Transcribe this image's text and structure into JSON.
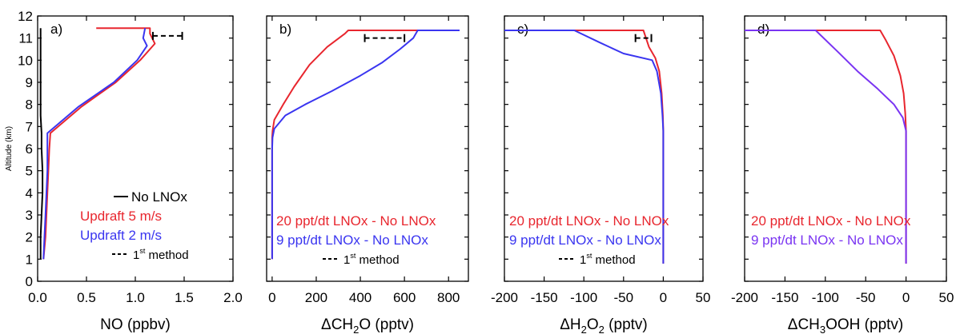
{
  "colors": {
    "black": "#000000",
    "red": "#e8262e",
    "blue": "#3a35f0",
    "violet": "#7a34f2"
  },
  "shared_axis": {
    "ylabel": "Altitude (km)",
    "yticks": [
      "0",
      "1",
      "2",
      "3",
      "4",
      "5",
      "6",
      "7",
      "8",
      "9",
      "10",
      "11",
      "12"
    ],
    "ylim": [
      0,
      12
    ]
  },
  "chart_data": [
    {
      "type": "line",
      "panel_label": "a)",
      "xlabel": "NO (ppbv)",
      "xlim": [
        0,
        2.0
      ],
      "xticks": [
        "0.0",
        "0.5",
        "1.0",
        "1.5",
        "2.0"
      ],
      "ylim": [
        0,
        12
      ],
      "series": [
        {
          "name": "No LNOx",
          "color": "#000000",
          "x": [
            0.03,
            0.03,
            0.04,
            0.05,
            0.05,
            0.04,
            0.04,
            0.03,
            0.03,
            0.03,
            0.03,
            0.03
          ],
          "y": [
            1,
            2,
            3,
            4,
            5,
            6,
            6.7,
            7.5,
            8.5,
            9.5,
            10.5,
            11.45
          ]
        },
        {
          "name": "Updraft 5 m/s",
          "color": "#e8262e",
          "x": [
            0.06,
            0.08,
            0.09,
            0.1,
            0.11,
            0.12,
            0.13,
            0.45,
            0.8,
            1.05,
            1.2,
            1.15,
            1.15,
            0.6
          ],
          "y": [
            1,
            2,
            3,
            4,
            5,
            6,
            6.7,
            7.9,
            9.0,
            10.0,
            10.75,
            11.2,
            11.45,
            11.45
          ]
        },
        {
          "name": "Updraft 2 m/s",
          "color": "#3a35f0",
          "x": [
            0.06,
            0.07,
            0.08,
            0.09,
            0.1,
            0.1,
            0.1,
            0.42,
            0.78,
            1.02,
            1.12,
            1.08,
            1.1
          ],
          "y": [
            1,
            2,
            3,
            4,
            5,
            6,
            6.7,
            7.9,
            9.0,
            10.0,
            10.65,
            11.0,
            11.45
          ]
        }
      ],
      "method_bar": {
        "x": [
          1.18,
          1.48
        ],
        "y": 11.1
      },
      "legend": [
        {
          "text": "No LNOx",
          "color": "#000000",
          "marker": "solid"
        },
        {
          "text": "Updraft 5 m/s",
          "color": "#e8262e",
          "marker": "none"
        },
        {
          "text": "Updraft 2 m/s",
          "color": "#3a35f0",
          "marker": "none"
        },
        {
          "text": "1",
          "sup": "st",
          "tail": " method",
          "color": "#000000",
          "marker": "dashed"
        }
      ]
    },
    {
      "type": "line",
      "panel_label": "b)",
      "xlabel": "ΔCH",
      "xlabel_parts": [
        "ΔCH",
        "2",
        "O (pptv)"
      ],
      "xlim": [
        -25,
        890
      ],
      "xticks": [
        "0",
        "200",
        "400",
        "600",
        "800"
      ],
      "ylim": [
        0,
        12
      ],
      "series": [
        {
          "name": "20 ppt/dt LNOx - No LNOx",
          "color": "#e8262e",
          "x": [
            0,
            0,
            0,
            0,
            0,
            2,
            10,
            50,
            100,
            170,
            250,
            330,
            345,
            850
          ],
          "y": [
            1,
            3,
            5,
            6,
            6.5,
            6.8,
            7.3,
            8.0,
            8.8,
            9.8,
            10.6,
            11.2,
            11.35,
            11.35
          ]
        },
        {
          "name": "9 ppt/dt LNOx - No LNOx",
          "color": "#3a35f0",
          "x": [
            0,
            0,
            0,
            0,
            2,
            10,
            60,
            150,
            270,
            400,
            500,
            580,
            640,
            660,
            850
          ],
          "y": [
            1,
            3,
            5,
            6,
            6.5,
            6.9,
            7.5,
            8.0,
            8.6,
            9.3,
            9.9,
            10.5,
            11.0,
            11.35,
            11.35
          ]
        }
      ],
      "method_bar": {
        "x": [
          420,
          600
        ],
        "y": 11.0
      },
      "legend": [
        {
          "text": "20 ppt/dt LNOx - No LNOx",
          "color": "#e8262e",
          "marker": "none"
        },
        {
          "text": "9 ppt/dt LNOx - No LNOx",
          "color": "#3a35f0",
          "marker": "none"
        },
        {
          "text": "1",
          "sup": "st",
          "tail": " method",
          "color": "#000000",
          "marker": "dashed"
        }
      ]
    },
    {
      "type": "line",
      "panel_label": "c)",
      "xlabel": "ΔH",
      "xlabel_parts": [
        "ΔH",
        "2",
        "O",
        "2",
        " (pptv)"
      ],
      "xlim": [
        -200,
        50
      ],
      "xticks": [
        "-200",
        "-150",
        "-100",
        "-50",
        "0",
        "50"
      ],
      "ylim": [
        0,
        12
      ],
      "series": [
        {
          "name": "20 ppt/dt LNOx - No LNOx",
          "color": "#e8262e",
          "x": [
            0,
            0,
            0,
            -0.5,
            -2,
            -5,
            -10,
            -18,
            -25,
            -200
          ],
          "y": [
            0.8,
            5,
            6.8,
            7.5,
            8.5,
            9.5,
            10.1,
            10.6,
            11.35,
            11.35
          ]
        },
        {
          "name": "9 ppt/dt LNOx - No LNOx",
          "color": "#3a35f0",
          "x": [
            0,
            0,
            0,
            -1,
            -3,
            -8,
            -14,
            -50,
            -80,
            -112,
            -200
          ],
          "y": [
            0.8,
            5,
            6.8,
            7.5,
            8.5,
            9.5,
            10.0,
            10.3,
            10.8,
            11.35,
            11.35
          ]
        }
      ],
      "method_bar": {
        "x": [
          -35,
          -15
        ],
        "y": 11.0
      },
      "legend": [
        {
          "text": "20 ppt/dt LNOx - No LNOx",
          "color": "#e8262e",
          "marker": "none"
        },
        {
          "text": "9 ppt/dt LNOx - No LNOx",
          "color": "#3a35f0",
          "marker": "none"
        },
        {
          "text": "1",
          "sup": "st",
          "tail": " method",
          "color": "#000000",
          "marker": "dashed"
        }
      ]
    },
    {
      "type": "line",
      "panel_label": "d)",
      "xlabel": "ΔCH",
      "xlabel_parts": [
        "ΔCH",
        "3",
        "OOH (pptv)"
      ],
      "xlim": [
        -200,
        50
      ],
      "xticks": [
        "-200",
        "-150",
        "-100",
        "-50",
        "0",
        "50"
      ],
      "ylim": [
        0,
        12
      ],
      "series": [
        {
          "name": "20 ppt/dt LNOx - No LNOx",
          "color": "#e8262e",
          "x": [
            0,
            0,
            0,
            -1,
            -3,
            -7,
            -15,
            -25,
            -32,
            -200
          ],
          "y": [
            0.8,
            5,
            6.8,
            7.6,
            8.5,
            9.3,
            10.2,
            10.9,
            11.35,
            11.35
          ]
        },
        {
          "name": "9 ppt/dt LNOx - No LNOx",
          "color": "#7a34f2",
          "x": [
            0,
            0,
            0,
            -4,
            -15,
            -35,
            -60,
            -85,
            -112,
            -200
          ],
          "y": [
            0.8,
            5,
            6.8,
            7.4,
            8.0,
            8.7,
            9.5,
            10.4,
            11.35,
            11.35
          ]
        }
      ],
      "legend": [
        {
          "text": "20 ppt/dt LNOx - No LNOx",
          "color": "#e8262e",
          "marker": "none"
        },
        {
          "text": "9 ppt/dt LNOx - No LNOx",
          "color": "#7a34f2",
          "marker": "none"
        }
      ]
    }
  ]
}
